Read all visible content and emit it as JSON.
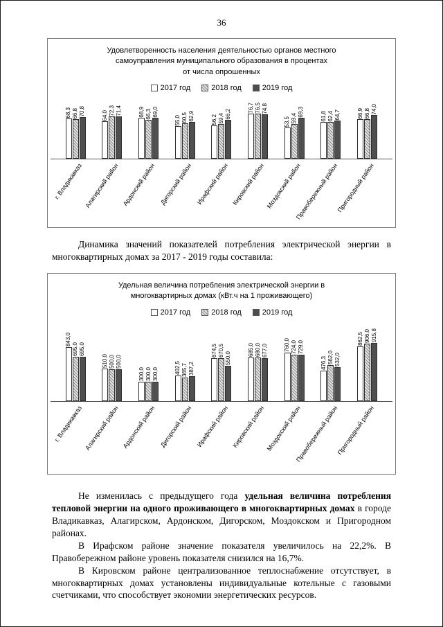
{
  "page": {
    "number": "36"
  },
  "chart_data": [
    {
      "type": "bar",
      "title_lines": [
        "Удовлетворенность населения деятельностью органов местного",
        "самоуправления муниципального образования в процентах",
        "от числа опрошенных"
      ],
      "categories": [
        "г. Владикавказ",
        "Алагирский район",
        "Ардонский район",
        "Дигорский район",
        "Ирафский район",
        "Кировский район",
        "Моздокский район",
        "Правобережный район",
        "Пригородный район"
      ],
      "series": [
        {
          "name": "2017 год",
          "values": [
            68.3,
            64.0,
            68.9,
            55.0,
            56.2,
            76.7,
            53.5,
            61.8,
            66.9
          ]
        },
        {
          "name": "2018 год",
          "values": [
            66.8,
            72.3,
            66.3,
            60.5,
            59.4,
            76.5,
            59.4,
            62.4,
            66.8
          ]
        },
        {
          "name": "2019 год",
          "values": [
            70.8,
            71.4,
            69.0,
            62.9,
            66.2,
            74.8,
            69.3,
            64.7,
            74.0
          ]
        }
      ],
      "ylim": [
        0,
        80
      ],
      "grid": false,
      "legend_position": "top"
    },
    {
      "type": "bar",
      "title_lines": [
        "Удельная величина потребления электрической энергии в",
        "многоквартирных домах (кВт.ч на 1 проживающего)"
      ],
      "categories": [
        "г. Владикавказ",
        "Алагирский район",
        "Ардонский район",
        "Дигорский район",
        "Ирафский район",
        "Кировский район",
        "Моздокский район",
        "Правобережный район",
        "Пригородный район"
      ],
      "series": [
        {
          "name": "2017 год",
          "values": [
            843.0,
            510.0,
            300.0,
            402.5,
            674.5,
            685.0,
            760.0,
            476.3,
            862.5
          ]
        },
        {
          "name": "2018 год",
          "values": [
            695.0,
            500.0,
            300.0,
            365.7,
            670.5,
            680.0,
            724.0,
            562.0,
            906.0
          ]
        },
        {
          "name": "2019 год",
          "values": [
            695.0,
            500.0,
            300.0,
            387.2,
            550.0,
            677.0,
            729.0,
            532.0,
            915.8
          ]
        }
      ],
      "ylim": [
        0,
        1000
      ],
      "grid": false,
      "legend_position": "top"
    }
  ],
  "paragraphs": {
    "intro": "Динамика значений показателей потребления электрической энергии в многоквартирных домах за 2017 - 2019 годы составила:",
    "p1_pre": "Не изменилась с предыдущего года ",
    "p1_bold": "удельная величина потребления тепловой энергии на одного проживающего в многоквартирных домах",
    "p1_post": " в городе Владикавказ, Алагирском, Ардонском, Дигорском, Моздокском и Пригородном районах.",
    "p2": "В Ирафском районе значение показателя увеличилось на 22,2%. В Правобережном районе уровень показателя снизился на 16,7%.",
    "p3": "В Кировском районе централизованное теплоснабжение отсутствует, в многоквартирных домах установлены индивидуальные котельные с газовыми счетчиками, что способствует экономии энергетических ресурсов."
  }
}
